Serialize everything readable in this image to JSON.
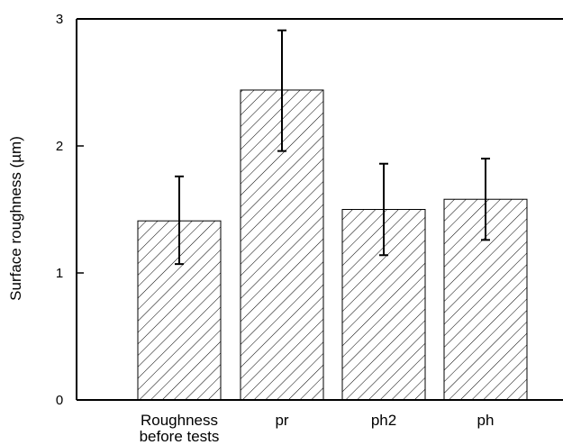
{
  "chart_data": {
    "type": "bar",
    "title": "",
    "xlabel": "",
    "ylabel": "Surface roughness (µm)",
    "ylim": [
      0,
      3
    ],
    "yticks": [
      0,
      1,
      2,
      3
    ],
    "categories": [
      [
        "Roughness",
        "before tests"
      ],
      [
        "pr"
      ],
      [
        "ph2"
      ],
      [
        "ph"
      ]
    ],
    "values": [
      1.41,
      2.44,
      1.5,
      1.58
    ],
    "error_low": [
      1.07,
      1.96,
      1.14,
      1.26
    ],
    "error_high": [
      1.76,
      2.91,
      1.86,
      1.9
    ],
    "bar_fill": "hatched",
    "grid": false,
    "legend": "none"
  },
  "colors": {
    "axis": "#000000",
    "bar_outline": "#000000",
    "hatch": "#000000",
    "background": "#ffffff"
  }
}
